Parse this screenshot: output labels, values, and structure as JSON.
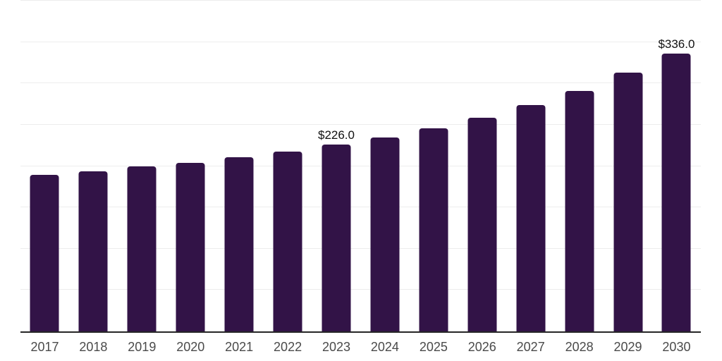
{
  "chart_data": {
    "type": "bar",
    "title": "",
    "xlabel": "",
    "ylabel": "",
    "categories": [
      "2017",
      "2018",
      "2019",
      "2020",
      "2021",
      "2022",
      "2023",
      "2024",
      "2025",
      "2026",
      "2027",
      "2028",
      "2029",
      "2030"
    ],
    "values": [
      189.4,
      193.2,
      199.4,
      203.7,
      210.3,
      217.4,
      226.0,
      234.6,
      246.0,
      258.8,
      274.0,
      291.2,
      312.6,
      336.0
    ],
    "data_labels": [
      "",
      "",
      "",
      "",
      "",
      "",
      "$226.0",
      "",
      "",
      "",
      "",
      "",
      "",
      "$336.0"
    ],
    "ylim": [
      0,
      400
    ],
    "grid_step": 50,
    "grid_visible": true,
    "y_tick_labels_visible": false,
    "legend_position": "none",
    "colors": {
      "bar": "#321347",
      "grid": "#ededed",
      "axis_line": "#262626",
      "tick_label": "#4a4a4a",
      "value_label": "#111111",
      "background": "#ffffff"
    }
  }
}
